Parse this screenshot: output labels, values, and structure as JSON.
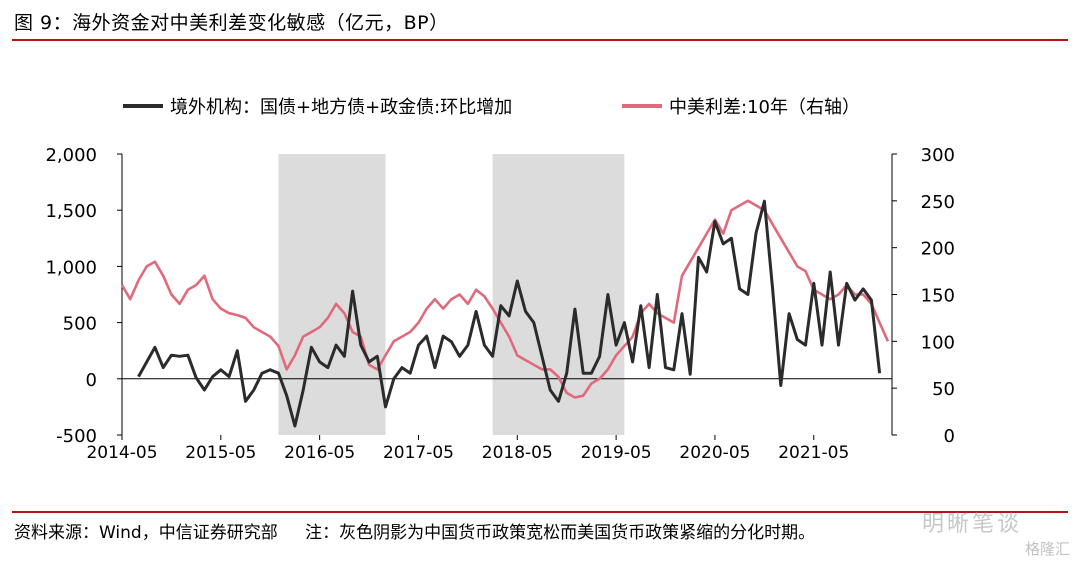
{
  "title": "图 9：海外资金对中美利差变化敏感（亿元，BP）",
  "source": "资料来源：Wind，中信证券研究部",
  "note": "注：灰色阴影为中国货币政策宽松而美国货币政策紧缩的分化时期。",
  "watermark": "明晰笔谈",
  "watermark2": "格隆汇",
  "colors": {
    "series1": "#2b2b2b",
    "series2": "#e06a7c",
    "shade": "#dcdcdc",
    "rule": "#b3121b"
  },
  "chart_data": {
    "type": "line",
    "legend_position": "top",
    "x_ticks": [
      "2014-05",
      "2015-05",
      "2016-05",
      "2017-05",
      "2018-05",
      "2019-05",
      "2020-05",
      "2021-05"
    ],
    "y_left": {
      "ticks": [
        "2,000",
        "1,500",
        "1,000",
        "500",
        "0",
        "-500"
      ],
      "min": -500,
      "max": 2000
    },
    "y_right": {
      "ticks": [
        "300",
        "250",
        "200",
        "150",
        "100",
        "50",
        "0"
      ],
      "min": 0,
      "max": 300
    },
    "shaded_periods": [
      {
        "start": "2015-12",
        "end": "2017-01"
      },
      {
        "start": "2018-02",
        "end": "2019-06"
      }
    ],
    "series": [
      {
        "name": "境外机构：国债+地方债+政金债:环比增加",
        "axis": "left",
        "color": "#2b2b2b",
        "x": [
          "2014-07",
          "2014-09",
          "2014-10",
          "2014-11",
          "2014-12",
          "2015-01",
          "2015-02",
          "2015-03",
          "2015-04",
          "2015-05",
          "2015-06",
          "2015-07",
          "2015-08",
          "2015-09",
          "2015-10",
          "2015-11",
          "2015-12",
          "2016-01",
          "2016-02",
          "2016-03",
          "2016-04",
          "2016-05",
          "2016-06",
          "2016-07",
          "2016-08",
          "2016-09",
          "2016-10",
          "2016-11",
          "2016-12",
          "2017-01",
          "2017-02",
          "2017-03",
          "2017-04",
          "2017-05",
          "2017-06",
          "2017-07",
          "2017-08",
          "2017-09",
          "2017-10",
          "2017-11",
          "2017-12",
          "2018-01",
          "2018-02",
          "2018-03",
          "2018-04",
          "2018-05",
          "2018-06",
          "2018-07",
          "2018-08",
          "2018-09",
          "2018-10",
          "2018-11",
          "2018-12",
          "2019-01",
          "2019-02",
          "2019-03",
          "2019-04",
          "2019-05",
          "2019-06",
          "2019-07",
          "2019-08",
          "2019-09",
          "2019-10",
          "2019-11",
          "2019-12",
          "2020-01",
          "2020-02",
          "2020-03",
          "2020-04",
          "2020-05",
          "2020-06",
          "2020-07",
          "2020-08",
          "2020-09",
          "2020-10",
          "2020-11",
          "2020-12",
          "2021-01",
          "2021-02",
          "2021-03",
          "2021-04",
          "2021-05",
          "2021-06",
          "2021-07",
          "2021-08",
          "2021-09",
          "2021-10",
          "2021-11",
          "2021-12",
          "2022-01"
        ],
        "values": [
          20,
          280,
          100,
          210,
          200,
          210,
          10,
          -100,
          20,
          80,
          20,
          250,
          -200,
          -100,
          50,
          80,
          50,
          -150,
          -420,
          -100,
          280,
          150,
          100,
          300,
          200,
          780,
          300,
          150,
          200,
          -250,
          0,
          100,
          50,
          300,
          380,
          100,
          380,
          330,
          200,
          300,
          600,
          300,
          200,
          650,
          560,
          870,
          600,
          500,
          200,
          -100,
          -200,
          50,
          620,
          50,
          50,
          200,
          750,
          300,
          500,
          150,
          650,
          100,
          750,
          100,
          80,
          580,
          40,
          1080,
          950,
          1400,
          1200,
          1250,
          800,
          750,
          1300,
          1580,
          800,
          -60,
          580,
          350,
          300,
          850,
          300,
          950,
          300,
          850,
          700,
          800,
          700,
          50
        ]
      },
      {
        "name": "中美利差:10年（右轴）",
        "axis": "right",
        "color": "#e06a7c",
        "x": [
          "2014-05",
          "2014-06",
          "2014-07",
          "2014-08",
          "2014-09",
          "2014-10",
          "2014-11",
          "2014-12",
          "2015-01",
          "2015-02",
          "2015-03",
          "2015-04",
          "2015-05",
          "2015-06",
          "2015-07",
          "2015-08",
          "2015-09",
          "2015-10",
          "2015-11",
          "2015-12",
          "2016-01",
          "2016-02",
          "2016-03",
          "2016-04",
          "2016-05",
          "2016-06",
          "2016-07",
          "2016-08",
          "2016-09",
          "2016-10",
          "2016-11",
          "2016-12",
          "2017-01",
          "2017-02",
          "2017-03",
          "2017-04",
          "2017-05",
          "2017-06",
          "2017-07",
          "2017-08",
          "2017-09",
          "2017-10",
          "2017-11",
          "2017-12",
          "2018-01",
          "2018-02",
          "2018-03",
          "2018-04",
          "2018-05",
          "2018-06",
          "2018-07",
          "2018-08",
          "2018-09",
          "2018-10",
          "2018-11",
          "2018-12",
          "2019-01",
          "2019-02",
          "2019-03",
          "2019-04",
          "2019-05",
          "2019-06",
          "2019-07",
          "2019-08",
          "2019-09",
          "2019-10",
          "2019-11",
          "2019-12",
          "2020-01",
          "2020-02",
          "2020-03",
          "2020-04",
          "2020-05",
          "2020-06",
          "2020-07",
          "2020-08",
          "2020-09",
          "2020-10",
          "2020-11",
          "2020-12",
          "2021-01",
          "2021-02",
          "2021-03",
          "2021-04",
          "2021-05",
          "2021-06",
          "2021-07",
          "2021-08",
          "2021-09",
          "2021-10",
          "2021-11",
          "2021-12",
          "2022-01",
          "2022-02"
        ],
        "values": [
          160,
          145,
          165,
          180,
          185,
          170,
          150,
          140,
          155,
          160,
          170,
          145,
          135,
          130,
          128,
          125,
          115,
          110,
          105,
          95,
          70,
          85,
          105,
          110,
          115,
          125,
          140,
          130,
          110,
          105,
          75,
          70,
          85,
          100,
          105,
          110,
          120,
          135,
          145,
          135,
          145,
          150,
          140,
          155,
          148,
          135,
          120,
          105,
          85,
          80,
          75,
          70,
          70,
          62,
          45,
          40,
          42,
          55,
          60,
          70,
          85,
          95,
          105,
          130,
          140,
          130,
          125,
          120,
          170,
          185,
          200,
          215,
          230,
          215,
          240,
          245,
          250,
          245,
          240,
          225,
          210,
          195,
          180,
          175,
          155,
          150,
          145,
          150,
          160,
          150,
          150,
          140,
          120,
          100
        ]
      }
    ]
  }
}
